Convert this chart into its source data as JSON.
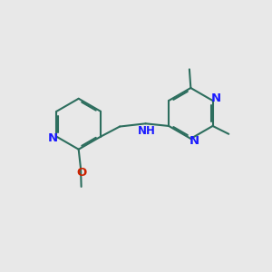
{
  "bg_color": "#e8e8e8",
  "bond_color": "#2d6e5e",
  "N_color": "#1a1aff",
  "O_color": "#cc2200",
  "bond_width": 1.5,
  "figsize": [
    3.0,
    3.0
  ],
  "dpi": 100,
  "xlim": [
    0,
    10
  ],
  "ylim": [
    0,
    10
  ]
}
